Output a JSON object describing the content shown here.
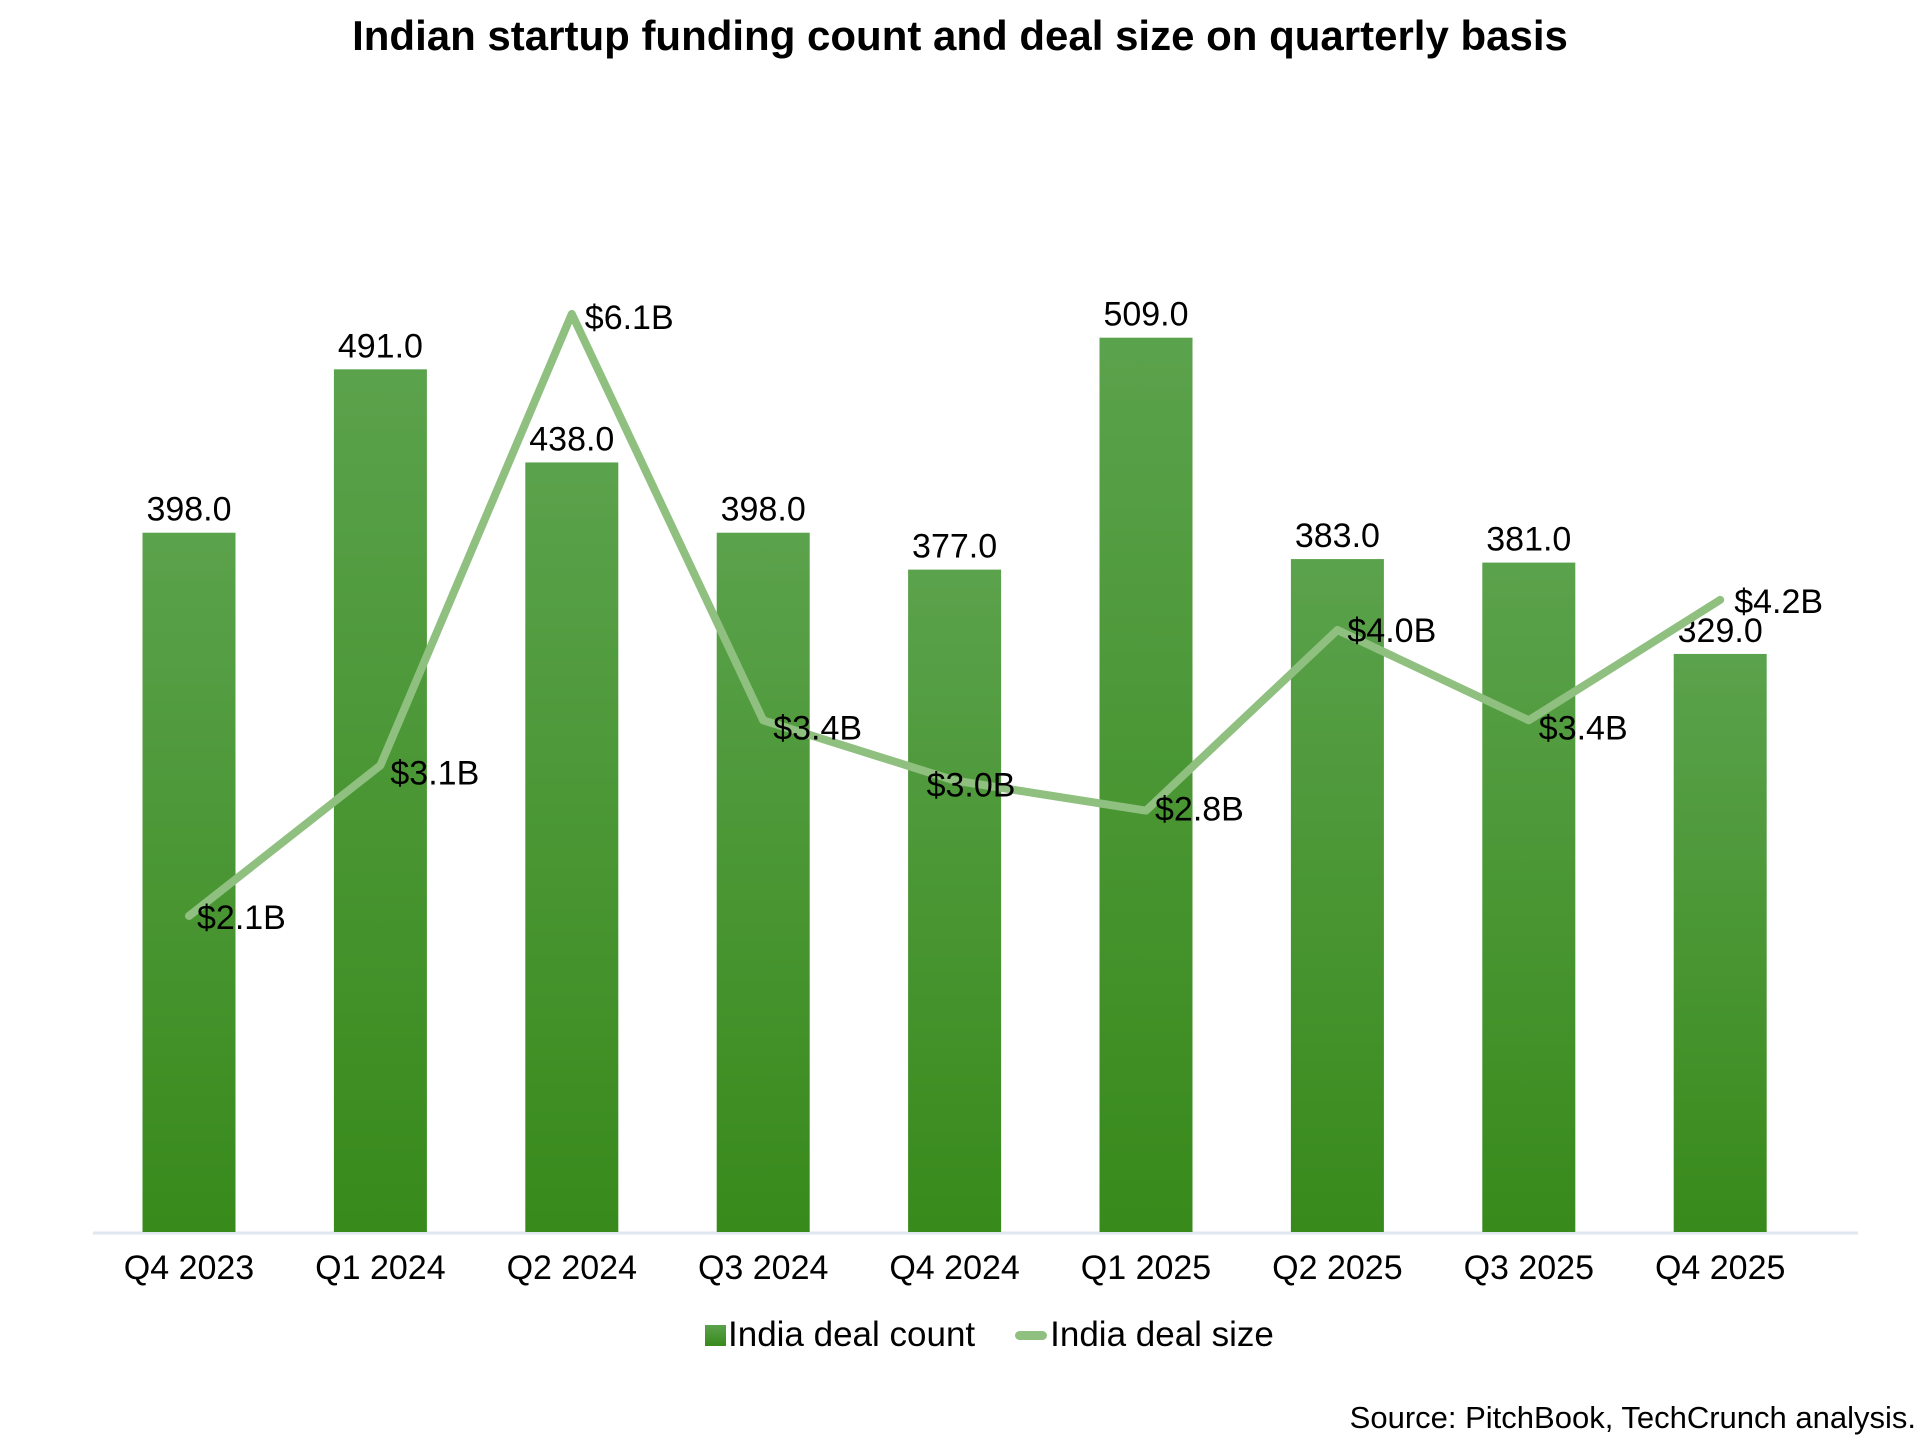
{
  "title": "Indian startup funding count and deal size on quarterly basis",
  "source_note": "Source: PitchBook, TechCrunch analysis.",
  "legend": {
    "items": [
      {
        "label": "India deal count",
        "marker": "square"
      },
      {
        "label": "India deal size",
        "marker": "line"
      }
    ]
  },
  "colors": {
    "bar_gradient_top": "#5ba24c",
    "bar_gradient_bottom": "#388a1b",
    "line": "#8fc080",
    "axis_line": "#dfe7f0",
    "text": "#000000",
    "background": "#ffffff"
  },
  "chart_data": {
    "type": "combo",
    "title": "Indian startup funding count and deal size on quarterly basis",
    "categories": [
      "Q4 2023",
      "Q1 2024",
      "Q2 2024",
      "Q3 2024",
      "Q4 2024",
      "Q1 2025",
      "Q2 2025",
      "Q3 2025",
      "Q4 2025"
    ],
    "series": [
      {
        "name": "India deal count",
        "chart_type": "bar",
        "values": [
          398,
          491,
          438,
          398,
          377,
          509,
          383,
          381,
          329
        ],
        "data_labels": [
          "398.0",
          "491.0",
          "438.0",
          "398.0",
          "377.0",
          "509.0",
          "383.0",
          "381.0",
          "329.0"
        ]
      },
      {
        "name": "India deal size",
        "chart_type": "line",
        "unit": "billion USD",
        "values": [
          2.1,
          3.1,
          6.1,
          3.4,
          3.0,
          2.8,
          4.0,
          3.4,
          4.2
        ],
        "data_labels": [
          "$2.1B",
          "$3.1B",
          "$6.1B",
          "$3.4B",
          "$3.0B",
          "$2.8B",
          "$4.0B",
          "$3.4B",
          "$4.2B"
        ]
      }
    ],
    "xlabel": "",
    "ylabel": "",
    "gridlines": false,
    "value_axes_hidden": true,
    "legend_position": "bottom",
    "data_labels_shown": true
  }
}
